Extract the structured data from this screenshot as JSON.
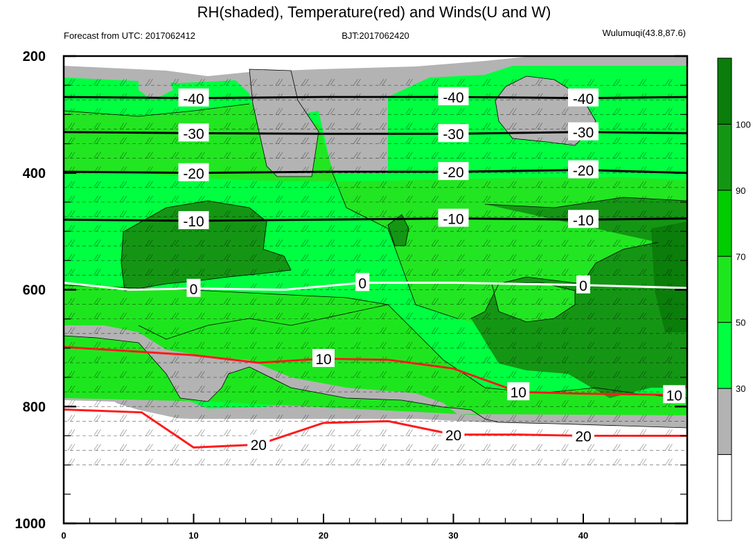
{
  "title": "RH(shaded), Temperature(red) and Winds(U and W)",
  "subtitle_left": "Forecast from UTC: 2017062412",
  "subtitle_center": "BJT:2017062420",
  "subtitle_right": "Wulumuqi(43.8,87.6)",
  "chart_data": {
    "type": "contour",
    "x_ticks": [
      "0",
      "10",
      "20",
      "30",
      "40"
    ],
    "x_tick_values": [
      0,
      10,
      20,
      30,
      40
    ],
    "xlim": [
      0,
      48
    ],
    "y_ticks": [
      "200",
      "400",
      "600",
      "800",
      "1000"
    ],
    "y_tick_values": [
      200,
      400,
      600,
      800,
      1000
    ],
    "ylim": [
      1000,
      200
    ],
    "y_axis": "pressure (hPa), reversed",
    "rh_colorbar": {
      "tick_labels": [
        "30",
        "50",
        "70",
        "90",
        "100"
      ],
      "levels": [
        30,
        50,
        70,
        90,
        100
      ],
      "colors": [
        "#ffffff",
        "#b3b3b3",
        "#00ff40",
        "#1ee61e",
        "#00cc00",
        "#149614",
        "#0a7d0a"
      ]
    },
    "temperature_contours": [
      {
        "label": "-40",
        "level": -40,
        "color": "#000000",
        "points": [
          [
            0,
            270
          ],
          [
            10,
            272
          ],
          [
            20,
            270
          ],
          [
            30,
            270
          ],
          [
            40,
            272
          ],
          [
            48,
            270
          ]
        ]
      },
      {
        "label": "-30",
        "level": -30,
        "color": "#000000",
        "points": [
          [
            0,
            330
          ],
          [
            10,
            332
          ],
          [
            20,
            333
          ],
          [
            30,
            333
          ],
          [
            40,
            330
          ],
          [
            48,
            332
          ]
        ]
      },
      {
        "label": "-20",
        "level": -20,
        "color": "#000000",
        "points": [
          [
            0,
            398
          ],
          [
            10,
            400
          ],
          [
            20,
            398
          ],
          [
            30,
            398
          ],
          [
            40,
            395
          ],
          [
            48,
            400
          ]
        ]
      },
      {
        "label": "-10",
        "level": -10,
        "color": "#000000",
        "points": [
          [
            0,
            480
          ],
          [
            10,
            482
          ],
          [
            20,
            480
          ],
          [
            30,
            478
          ],
          [
            40,
            480
          ],
          [
            48,
            478
          ]
        ]
      },
      {
        "label": "0",
        "level": 0,
        "color": "#ffffff",
        "points": [
          [
            0,
            588
          ],
          [
            5,
            600
          ],
          [
            10,
            598
          ],
          [
            17,
            600
          ],
          [
            23,
            588
          ],
          [
            30,
            588
          ],
          [
            40,
            592
          ],
          [
            48,
            597
          ]
        ]
      },
      {
        "label": "10",
        "level": 10,
        "color": "#ff1a1a",
        "points": [
          [
            0,
            698
          ],
          [
            10,
            712
          ],
          [
            15,
            725
          ],
          [
            20,
            718
          ],
          [
            25,
            720
          ],
          [
            30,
            735
          ],
          [
            35,
            775
          ],
          [
            40,
            778
          ],
          [
            47,
            780
          ],
          [
            48,
            765
          ]
        ]
      },
      {
        "label": "20",
        "level": 20,
        "color": "#ff1a1a",
        "points": [
          [
            0,
            805
          ],
          [
            6,
            810
          ],
          [
            10,
            870
          ],
          [
            15,
            865
          ],
          [
            20,
            828
          ],
          [
            25,
            825
          ],
          [
            30,
            848
          ],
          [
            35,
            848
          ],
          [
            40,
            850
          ],
          [
            48,
            850
          ]
        ]
      }
    ],
    "wind_levels": [
      250,
      275,
      300,
      325,
      350,
      375,
      400,
      425,
      450,
      475,
      500,
      525,
      550,
      575,
      600,
      625,
      650,
      675,
      700,
      725,
      750,
      775,
      800,
      825,
      850,
      875,
      900
    ]
  }
}
